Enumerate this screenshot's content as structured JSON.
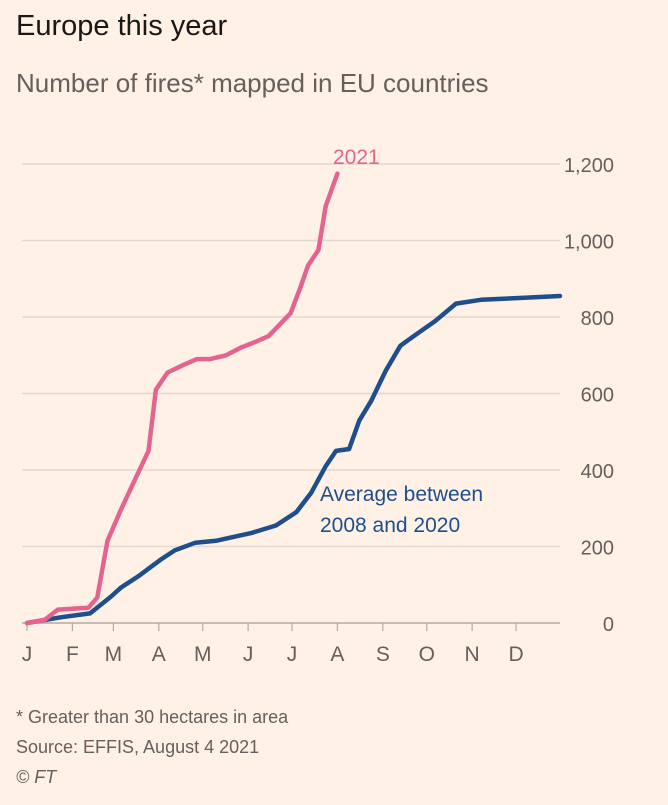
{
  "title": "Europe this year",
  "subtitle": "Number of fires* mapped in EU countries",
  "footnote": "* Greater than 30 hectares in area",
  "source": "Source: EFFIS, August 4 2021",
  "copyright": "© FT",
  "chart_data": {
    "type": "line",
    "xlabel": "",
    "ylabel": "",
    "x_ticks": [
      "J",
      "F",
      "M",
      "A",
      "M",
      "J",
      "J",
      "A",
      "S",
      "O",
      "N",
      "D"
    ],
    "xlim": [
      "01-01",
      "12-31"
    ],
    "ylim": [
      0,
      1200
    ],
    "y_ticks": [
      0,
      200,
      400,
      600,
      800,
      1000,
      1200
    ],
    "y_tick_labels": [
      "0",
      "200",
      "400",
      "600",
      "800",
      "1,000",
      "1,200"
    ],
    "y_axis_side": "right",
    "grid": true,
    "series": [
      {
        "name": "2021",
        "color": "#e5648f",
        "points": [
          [
            "01-01",
            0
          ],
          [
            "01-13",
            8
          ],
          [
            "01-22",
            35
          ],
          [
            "02-12",
            40
          ],
          [
            "02-18",
            67
          ],
          [
            "02-25",
            215
          ],
          [
            "03-06",
            295
          ],
          [
            "03-17",
            385
          ],
          [
            "03-25",
            450
          ],
          [
            "03-30",
            610
          ],
          [
            "04-07",
            655
          ],
          [
            "04-18",
            675
          ],
          [
            "04-27",
            690
          ],
          [
            "05-06",
            690
          ],
          [
            "05-17",
            700
          ],
          [
            "05-27",
            720
          ],
          [
            "06-06",
            735
          ],
          [
            "06-15",
            750
          ],
          [
            "06-30",
            810
          ],
          [
            "07-07",
            880
          ],
          [
            "07-12",
            935
          ],
          [
            "07-19",
            975
          ],
          [
            "07-24",
            1090
          ],
          [
            "08-01",
            1175
          ]
        ]
      },
      {
        "name": "Average between 2008 and 2020",
        "label_lines": [
          "Average between",
          "2008 and 2020"
        ],
        "color": "#1e4f8c",
        "points": [
          [
            "01-01",
            0
          ],
          [
            "01-24",
            15
          ],
          [
            "02-13",
            25
          ],
          [
            "02-27",
            68
          ],
          [
            "03-06",
            92
          ],
          [
            "03-19",
            125
          ],
          [
            "04-02",
            165
          ],
          [
            "04-12",
            190
          ],
          [
            "04-26",
            210
          ],
          [
            "05-10",
            215
          ],
          [
            "06-03",
            235
          ],
          [
            "06-20",
            255
          ],
          [
            "07-04",
            290
          ],
          [
            "07-14",
            340
          ],
          [
            "07-24",
            410
          ],
          [
            "07-31",
            450
          ],
          [
            "08-09",
            455
          ],
          [
            "08-16",
            530
          ],
          [
            "08-24",
            580
          ],
          [
            "09-03",
            660
          ],
          [
            "09-13",
            725
          ],
          [
            "09-24",
            755
          ],
          [
            "10-07",
            790
          ],
          [
            "10-21",
            835
          ],
          [
            "11-07",
            845
          ],
          [
            "12-05",
            850
          ],
          [
            "12-31",
            855
          ]
        ]
      }
    ]
  }
}
